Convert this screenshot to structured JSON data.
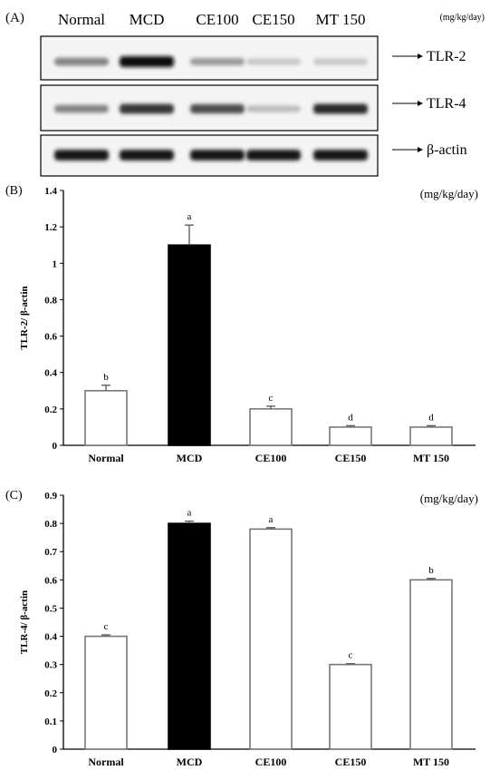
{
  "panel_a": {
    "label": "(A)",
    "unit": "(mg/kg/day)",
    "lanes": [
      "Normal",
      "MCD",
      "CE100",
      "CE150",
      "MT 150"
    ],
    "blots": [
      {
        "name": "TLR-2",
        "intensities": [
          0.45,
          1.0,
          0.35,
          0.15,
          0.15
        ]
      },
      {
        "name": "TLR-4",
        "intensities": [
          0.45,
          0.8,
          0.7,
          0.2,
          0.85
        ]
      },
      {
        "name": "β-actin",
        "intensities": [
          0.95,
          0.95,
          0.95,
          0.95,
          0.95
        ]
      }
    ]
  },
  "chart_data": [
    {
      "type": "bar",
      "panel": "(B)",
      "unit": "(mg/kg/day)",
      "ylabel": "TLR-2/ β-actin",
      "categories": [
        "Normal",
        "MCD",
        "CE100",
        "CE150",
        "MT 150"
      ],
      "values": [
        0.3,
        1.1,
        0.2,
        0.1,
        0.1
      ],
      "errors": [
        0.03,
        0.11,
        0.015,
        0.008,
        0.008
      ],
      "letters": [
        "b",
        "a",
        "c",
        "d",
        "d"
      ],
      "fills": [
        "#ffffff",
        "#000000",
        "#ffffff",
        "#ffffff",
        "#ffffff"
      ],
      "ylim": [
        0,
        1.4
      ],
      "yticks": [
        "0",
        "0.2",
        "0.4",
        "0.6",
        "0.8",
        "1",
        "1.2",
        "1.4"
      ]
    },
    {
      "type": "bar",
      "panel": "(C)",
      "unit": "(mg/kg/day)",
      "ylabel": "TLR-4/ β-actin",
      "categories": [
        "Normal",
        "MCD",
        "CE100",
        "CE150",
        "MT 150"
      ],
      "values": [
        0.4,
        0.8,
        0.78,
        0.3,
        0.6
      ],
      "errors": [
        0.005,
        0.008,
        0.005,
        0.003,
        0.005
      ],
      "letters": [
        "c",
        "a",
        "a",
        "c",
        "b"
      ],
      "fills": [
        "#ffffff",
        "#000000",
        "#ffffff",
        "#ffffff",
        "#ffffff"
      ],
      "ylim": [
        0,
        0.9
      ],
      "yticks": [
        "0",
        "0.1",
        "0.2",
        "0.3",
        "0.4",
        "0.5",
        "0.6",
        "0.7",
        "0.8",
        "0.9"
      ]
    }
  ]
}
